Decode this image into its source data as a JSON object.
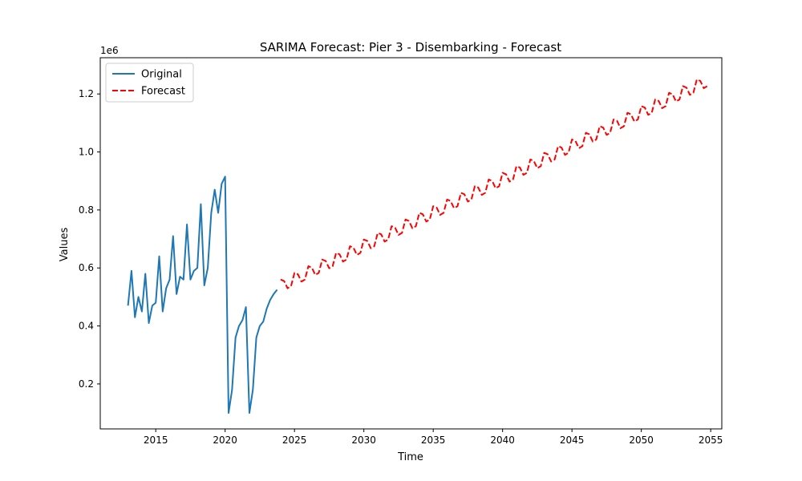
{
  "chart_data": {
    "type": "line",
    "title": "SARIMA Forecast: Pier 3 - Disembarking - Forecast",
    "xlabel": "Time",
    "ylabel": "Values",
    "y_offset_label": "1e6",
    "xlim": [
      2011.0,
      2055.8
    ],
    "ylim": [
      0.045,
      1.325
    ],
    "y_scale_note": "values in units of 1e6",
    "x_ticks": [
      2015,
      2020,
      2025,
      2030,
      2035,
      2040,
      2045,
      2050,
      2055
    ],
    "y_ticks": [
      0.2,
      0.4,
      0.6,
      0.8,
      1.0,
      1.2
    ],
    "grid": false,
    "legend_position": "upper left",
    "series": [
      {
        "name": "Original",
        "color": "#1f77b4",
        "style": "solid",
        "points": [
          [
            2013.0,
            0.47
          ],
          [
            2013.25,
            0.59
          ],
          [
            2013.5,
            0.43
          ],
          [
            2013.75,
            0.5
          ],
          [
            2014.0,
            0.45
          ],
          [
            2014.25,
            0.58
          ],
          [
            2014.5,
            0.41
          ],
          [
            2014.75,
            0.47
          ],
          [
            2015.0,
            0.48
          ],
          [
            2015.25,
            0.64
          ],
          [
            2015.5,
            0.45
          ],
          [
            2015.75,
            0.53
          ],
          [
            2016.0,
            0.56
          ],
          [
            2016.25,
            0.71
          ],
          [
            2016.5,
            0.51
          ],
          [
            2016.75,
            0.57
          ],
          [
            2017.0,
            0.56
          ],
          [
            2017.25,
            0.75
          ],
          [
            2017.5,
            0.56
          ],
          [
            2017.75,
            0.59
          ],
          [
            2018.0,
            0.6
          ],
          [
            2018.25,
            0.82
          ],
          [
            2018.5,
            0.54
          ],
          [
            2018.75,
            0.6
          ],
          [
            2019.0,
            0.79
          ],
          [
            2019.25,
            0.87
          ],
          [
            2019.5,
            0.79
          ],
          [
            2019.75,
            0.89
          ],
          [
            2020.0,
            0.915
          ],
          [
            2020.25,
            0.1
          ],
          [
            2020.5,
            0.18
          ],
          [
            2020.75,
            0.36
          ],
          [
            2021.0,
            0.4
          ],
          [
            2021.25,
            0.42
          ],
          [
            2021.5,
            0.465
          ],
          [
            2021.75,
            0.1
          ],
          [
            2022.0,
            0.18
          ],
          [
            2022.25,
            0.36
          ],
          [
            2022.5,
            0.4
          ],
          [
            2022.75,
            0.415
          ],
          [
            2023.0,
            0.46
          ],
          [
            2023.25,
            0.49
          ],
          [
            2023.5,
            0.51
          ],
          [
            2023.75,
            0.525
          ]
        ]
      },
      {
        "name": "Forecast",
        "color": "#ff0000",
        "style": "dashed",
        "start_x": 2024.0,
        "step_x": 0.25,
        "values": [
          0.56,
          0.555,
          0.53,
          0.537,
          0.583,
          0.578,
          0.553,
          0.56,
          0.606,
          0.601,
          0.576,
          0.583,
          0.629,
          0.624,
          0.599,
          0.606,
          0.652,
          0.647,
          0.622,
          0.629,
          0.675,
          0.67,
          0.645,
          0.652,
          0.698,
          0.693,
          0.668,
          0.675,
          0.721,
          0.716,
          0.691,
          0.698,
          0.744,
          0.739,
          0.714,
          0.721,
          0.767,
          0.762,
          0.737,
          0.744,
          0.79,
          0.785,
          0.76,
          0.767,
          0.813,
          0.808,
          0.783,
          0.79,
          0.836,
          0.831,
          0.806,
          0.813,
          0.859,
          0.854,
          0.829,
          0.836,
          0.882,
          0.877,
          0.852,
          0.859,
          0.905,
          0.9,
          0.875,
          0.882,
          0.928,
          0.923,
          0.898,
          0.905,
          0.951,
          0.946,
          0.921,
          0.928,
          0.974,
          0.969,
          0.944,
          0.951,
          0.997,
          0.992,
          0.967,
          0.974,
          1.02,
          1.015,
          0.99,
          0.997,
          1.043,
          1.038,
          1.013,
          1.02,
          1.066,
          1.061,
          1.036,
          1.043,
          1.089,
          1.084,
          1.059,
          1.066,
          1.112,
          1.107,
          1.082,
          1.089,
          1.135,
          1.13,
          1.105,
          1.112,
          1.158,
          1.153,
          1.128,
          1.135,
          1.181,
          1.176,
          1.151,
          1.158,
          1.204,
          1.199,
          1.174,
          1.181,
          1.227,
          1.222,
          1.197,
          1.204,
          1.25,
          1.245,
          1.22,
          1.227
        ]
      }
    ]
  }
}
